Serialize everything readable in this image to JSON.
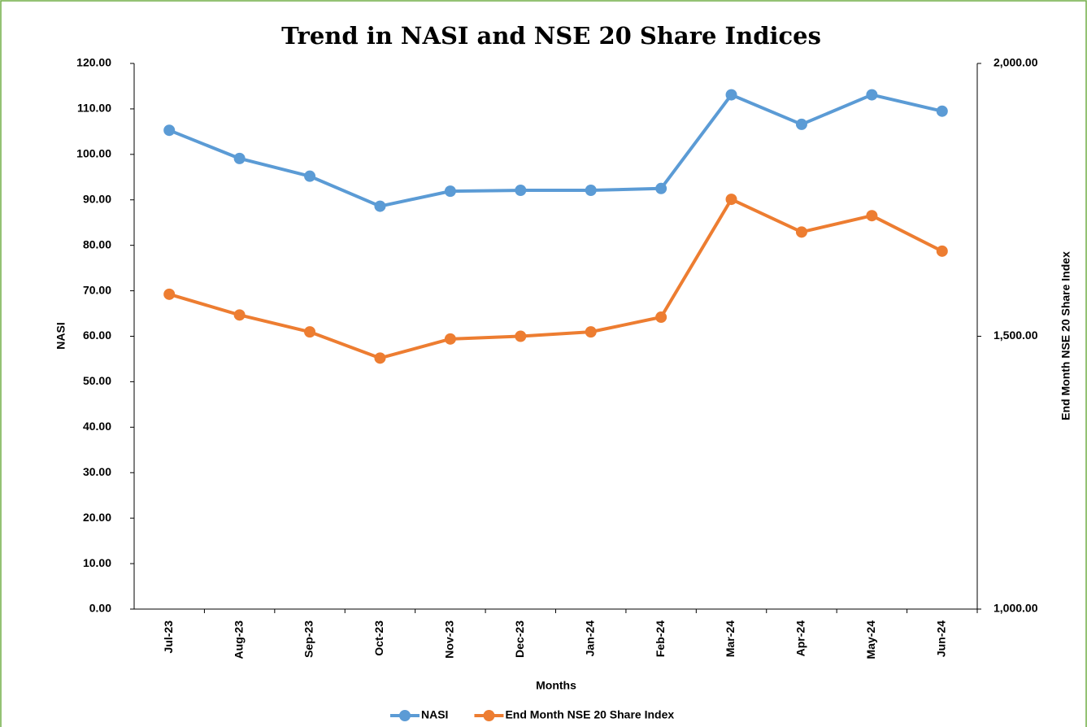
{
  "chart_data": {
    "type": "line",
    "title": "Trend in NASI and NSE 20 Share Indices",
    "x_label": "Months",
    "y_label": "NASI",
    "y2_label": "End Month NSE 20 Share Index",
    "categories": [
      "Jul-23",
      "Aug-23",
      "Sep-23",
      "Oct-23",
      "Nov-23",
      "Dec-23",
      "Jan-24",
      "Feb-24",
      "Mar-24",
      "Apr-24",
      "May-24",
      "Jun-24"
    ],
    "series": [
      {
        "name": "NASI",
        "color": "#5b9bd5",
        "values": [
          105.3,
          99.1,
          95.2,
          88.6,
          91.9,
          92.1,
          92.1,
          92.5,
          113.1,
          106.6,
          113.1,
          109.5
        ]
      },
      {
        "name": "End Month NSE 20 Share Index",
        "color": "#ed7d31",
        "axis": "y2",
        "values": [
          1577,
          1539,
          1508,
          1460,
          1495,
          1500,
          1508,
          1535,
          1751,
          1691,
          1721,
          1656
        ]
      }
    ],
    "ylim": [
      0,
      120
    ],
    "yticks": [
      {
        "value": 0,
        "label": "0.00"
      },
      {
        "value": 10,
        "label": "10.00"
      },
      {
        "value": 20,
        "label": "20.00"
      },
      {
        "value": 30,
        "label": "30.00"
      },
      {
        "value": 40,
        "label": "40.00"
      },
      {
        "value": 50,
        "label": "50.00"
      },
      {
        "value": 60,
        "label": "60.00"
      },
      {
        "value": 70,
        "label": "70.00"
      },
      {
        "value": 80,
        "label": "80.00"
      },
      {
        "value": 90,
        "label": "90.00"
      },
      {
        "value": 100,
        "label": "100.00"
      },
      {
        "value": 110,
        "label": "110.00"
      },
      {
        "value": 120,
        "label": "120.00"
      }
    ],
    "y2lim": [
      1000,
      2000
    ],
    "y2ticks": [
      {
        "value": 1000,
        "label": "1,000.00"
      },
      {
        "value": 1500,
        "label": "1,500.00"
      },
      {
        "value": 2000,
        "label": "2,000.00"
      }
    ],
    "legend": "bottom"
  }
}
